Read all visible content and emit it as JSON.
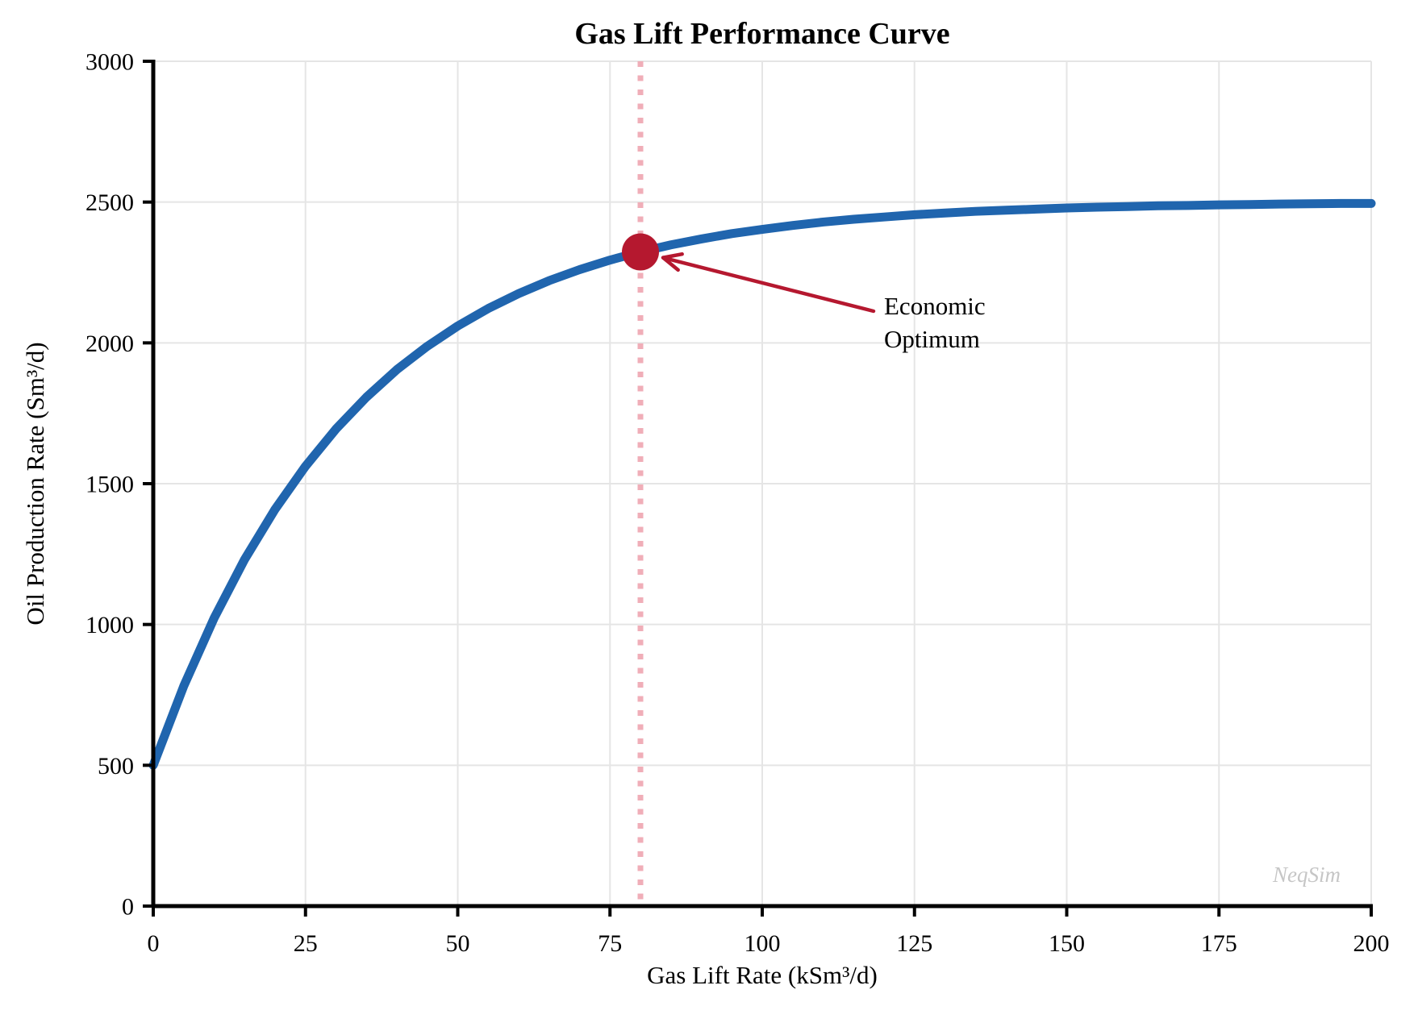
{
  "chart_data": {
    "type": "line",
    "title": "Gas Lift Performance Curve",
    "xlabel": "Gas Lift Rate (kSm³/d)",
    "ylabel": "Oil Production Rate (Sm³/d)",
    "xlim": [
      0,
      200
    ],
    "ylim": [
      0,
      3000
    ],
    "x_ticks": [
      0,
      25,
      50,
      75,
      100,
      125,
      150,
      175,
      200
    ],
    "y_ticks": [
      0,
      500,
      1000,
      1500,
      2000,
      2500,
      3000
    ],
    "grid": true,
    "legend": "none",
    "x": [
      0,
      5,
      10,
      15,
      20,
      25,
      30,
      35,
      40,
      45,
      50,
      55,
      60,
      65,
      70,
      75,
      80,
      85,
      90,
      95,
      100,
      105,
      110,
      115,
      120,
      125,
      130,
      135,
      140,
      145,
      150,
      155,
      160,
      165,
      170,
      175,
      180,
      185,
      190,
      195,
      200
    ],
    "series": [
      {
        "name": "gas-lift-performance",
        "values": [
          500,
          781,
          1023,
          1231,
          1409,
          1562,
          1694,
          1807,
          1905,
          1988,
          2060,
          2122,
          2175,
          2221,
          2260,
          2294,
          2323,
          2348,
          2369,
          2388,
          2403,
          2417,
          2429,
          2439,
          2447,
          2455,
          2461,
          2467,
          2471,
          2475,
          2479,
          2482,
          2484,
          2487,
          2488,
          2490,
          2491,
          2493,
          2494,
          2495,
          2495
        ]
      }
    ],
    "annotation": {
      "text": "Economic\nOptimum",
      "x": 80,
      "y": 2323,
      "vline_x": 80
    },
    "watermark": "NeqSim",
    "colors": {
      "curve": "#2065ae",
      "marker": "#b5182f",
      "arrow": "#b5182f",
      "vline": "#f0aeb8",
      "grid": "#e5e5e5",
      "spine": "#000000",
      "watermark": "#c6c6c6"
    }
  }
}
